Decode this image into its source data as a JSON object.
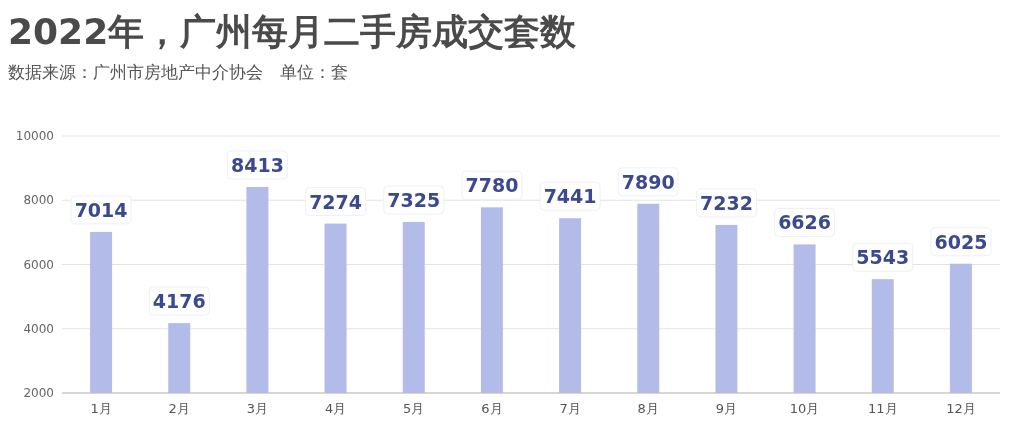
{
  "chart_data": {
    "type": "bar",
    "title": "2022年，广州每月二手房成交套数",
    "subtitle": "数据来源：广州市房地产中介协会　单位：套",
    "categories": [
      "1月",
      "2月",
      "3月",
      "4月",
      "5月",
      "6月",
      "7月",
      "8月",
      "9月",
      "10月",
      "11月",
      "12月"
    ],
    "values": [
      7014,
      4176,
      8413,
      7274,
      7325,
      7780,
      7441,
      7890,
      7232,
      6626,
      5543,
      6025
    ],
    "color": "#b3bce9",
    "ylim": [
      2000,
      10000
    ],
    "yticks": [
      2000,
      4000,
      6000,
      8000,
      10000
    ],
    "grid": "y",
    "data_labels": true
  }
}
